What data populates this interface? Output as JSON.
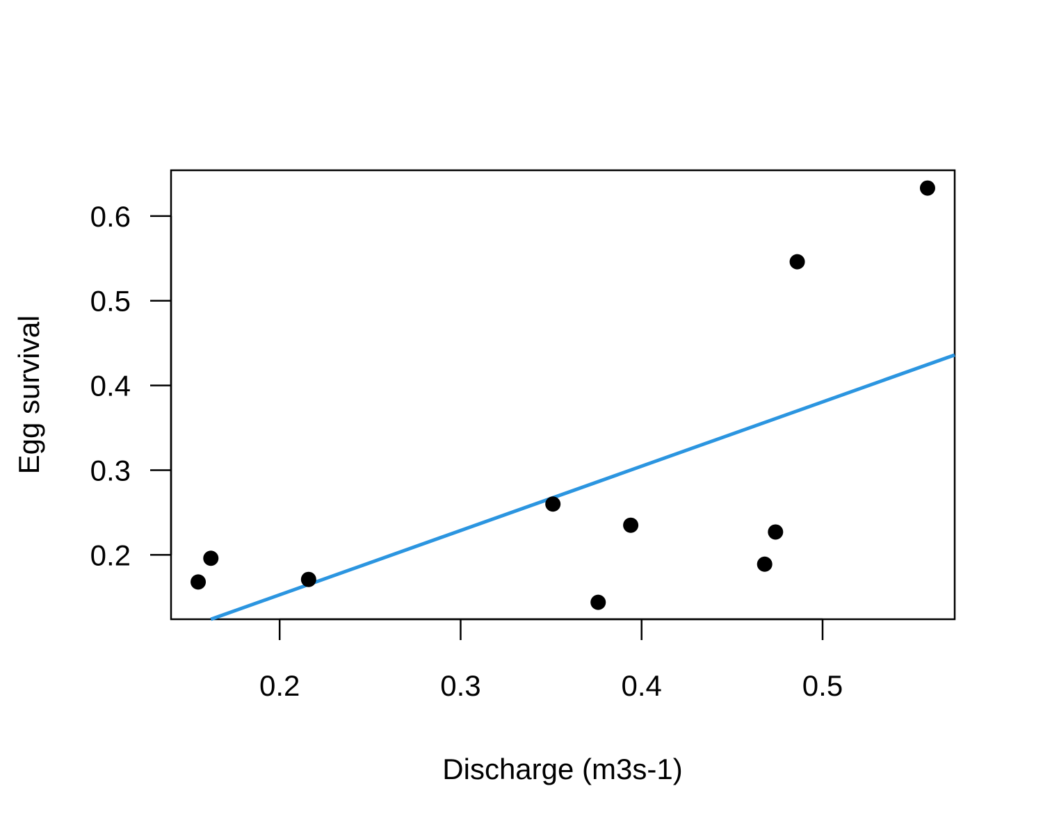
{
  "chart_data": {
    "type": "scatter",
    "title": "",
    "xlabel": "Discharge (m3s-1)",
    "ylabel": "Egg survival",
    "xlim": [
      0.14,
      0.573
    ],
    "ylim": [
      0.124,
      0.654
    ],
    "x_ticks": [
      0.2,
      0.3,
      0.4,
      0.5
    ],
    "x_tick_labels": [
      "0.2",
      "0.3",
      "0.4",
      "0.5"
    ],
    "y_ticks": [
      0.2,
      0.3,
      0.4,
      0.5,
      0.6
    ],
    "y_tick_labels": [
      "0.2",
      "0.3",
      "0.4",
      "0.5",
      "0.6"
    ],
    "grid": false,
    "legend": "none",
    "series": [
      {
        "type": "scatter",
        "color": "#000000",
        "points": [
          {
            "x": 0.155,
            "y": 0.168
          },
          {
            "x": 0.162,
            "y": 0.196
          },
          {
            "x": 0.216,
            "y": 0.171
          },
          {
            "x": 0.351,
            "y": 0.26
          },
          {
            "x": 0.376,
            "y": 0.144
          },
          {
            "x": 0.394,
            "y": 0.235
          },
          {
            "x": 0.468,
            "y": 0.189
          },
          {
            "x": 0.474,
            "y": 0.227
          },
          {
            "x": 0.486,
            "y": 0.546
          },
          {
            "x": 0.558,
            "y": 0.633
          }
        ]
      },
      {
        "type": "line",
        "color": "#2b95e0",
        "points": [
          {
            "x": 0.162,
            "y": 0.124
          },
          {
            "x": 0.573,
            "y": 0.436
          }
        ]
      }
    ]
  }
}
